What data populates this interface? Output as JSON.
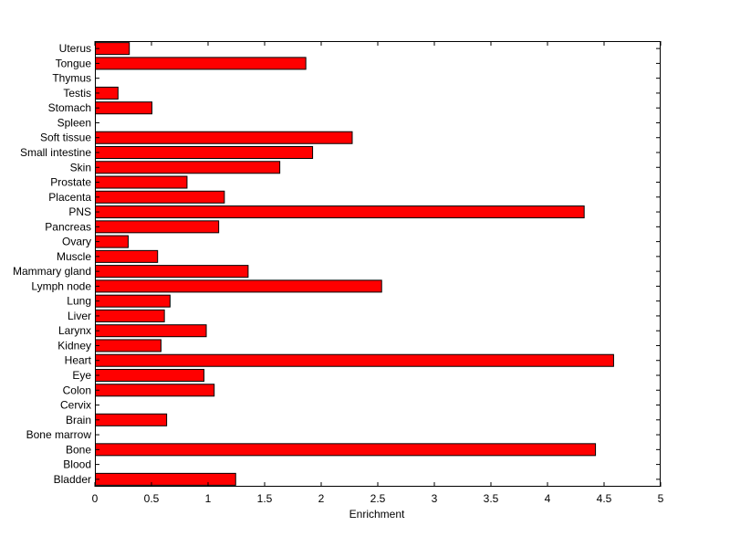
{
  "chart_data": {
    "type": "bar",
    "orientation": "horizontal",
    "title": "",
    "xlabel": "Enrichment",
    "ylabel": "",
    "xlim": [
      0,
      5
    ],
    "x_ticks": [
      "0",
      "0.5",
      "1",
      "1.5",
      "2",
      "2.5",
      "3",
      "3.5",
      "4",
      "4.5",
      "5"
    ],
    "grid": false,
    "legend": "none",
    "bar_color": "#ff0000",
    "bar_edge_color": "#000000",
    "categories": [
      "Bladder",
      "Blood",
      "Bone",
      "Bone marrow",
      "Brain",
      "Cervix",
      "Colon",
      "Eye",
      "Heart",
      "Kidney",
      "Larynx",
      "Liver",
      "Lung",
      "Lymph node",
      "Mammary gland",
      "Muscle",
      "Ovary",
      "Pancreas",
      "PNS",
      "Placenta",
      "Prostate",
      "Skin",
      "Small intestine",
      "Soft tissue",
      "Spleen",
      "Stomach",
      "Testis",
      "Thymus",
      "Tongue",
      "Uterus"
    ],
    "values": [
      1.24,
      0,
      4.42,
      0,
      0.63,
      0,
      1.05,
      0.96,
      4.58,
      0.58,
      0.98,
      0.61,
      0.66,
      2.53,
      1.35,
      0.55,
      0.29,
      1.09,
      4.32,
      1.14,
      0.81,
      1.63,
      1.92,
      2.27,
      0,
      0.5,
      0.2,
      0,
      1.86,
      0.3
    ]
  }
}
